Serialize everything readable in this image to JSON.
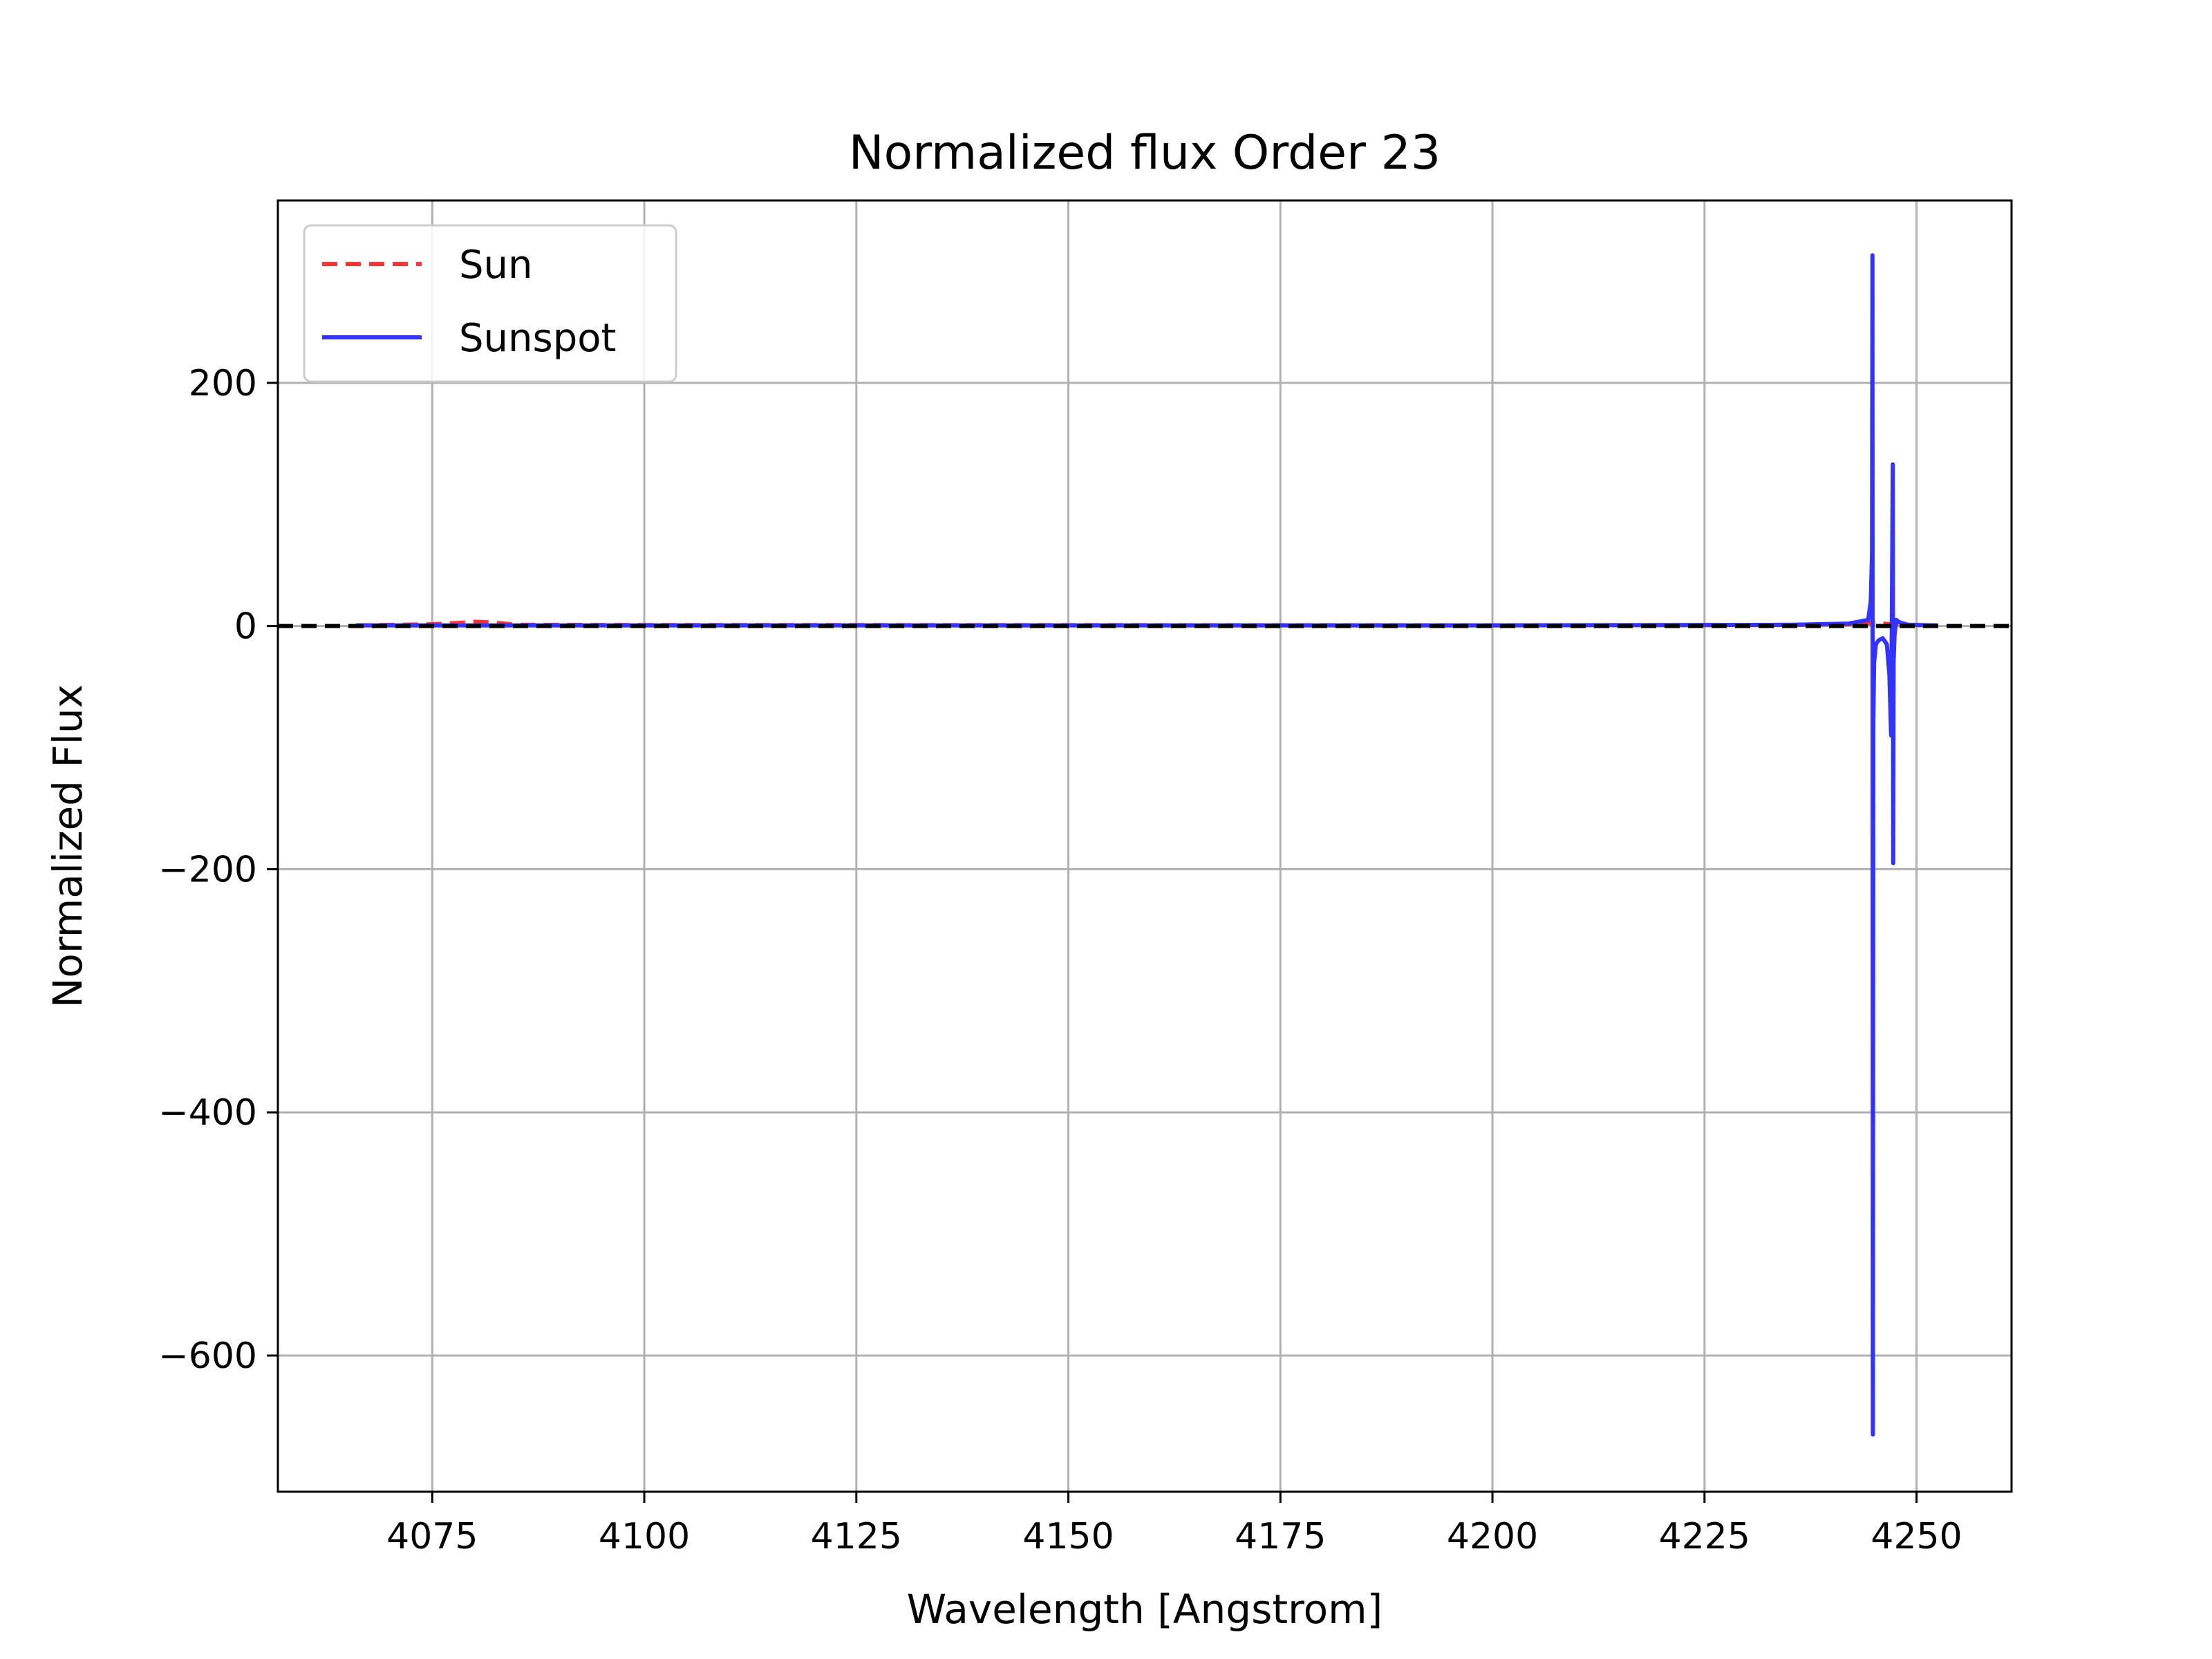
{
  "chart_data": {
    "type": "line",
    "title": "Normalized flux Order 23",
    "xlabel": "Wavelength [Angstrom]",
    "ylabel": "Normalized Flux",
    "xlim": [
      4056.8,
      4261.2
    ],
    "ylim": [
      -712,
      350
    ],
    "xticks": [
      4075,
      4100,
      4125,
      4150,
      4175,
      4200,
      4225,
      4250
    ],
    "xtick_labels": [
      "4075",
      "4100",
      "4125",
      "4150",
      "4175",
      "4200",
      "4225",
      "4250"
    ],
    "yticks": [
      200,
      0,
      -200,
      -400,
      -600
    ],
    "ytick_labels": [
      "200",
      "0",
      "−200",
      "−400",
      "−600"
    ],
    "grid": true,
    "legend_position": "top-left",
    "reference_line": {
      "y": 0,
      "style": "dashed",
      "color": "#000000"
    },
    "series": [
      {
        "name": "Sun",
        "style": "dashed",
        "color": "#ff3333",
        "x": [
          4066,
          4075,
          4078,
          4080,
          4082,
          4085,
          4100,
          4150,
          4200,
          4235,
          4242,
          4245,
          4246,
          4247,
          4248,
          4250,
          4252.5
        ],
        "y": [
          0.5,
          1.5,
          2.5,
          3.5,
          3,
          1,
          0.8,
          0.7,
          0.6,
          0.8,
          1.5,
          2.5,
          2,
          1.5,
          1.2,
          0.8,
          0.5
        ]
      },
      {
        "name": "Sunspot",
        "style": "solid",
        "color": "#3333ff",
        "x": [
          4066,
          4100,
          4150,
          4200,
          4235,
          4242,
          4244.3,
          4244.6,
          4244.75,
          4244.8,
          4244.85,
          4244.9,
          4245.0,
          4245.2,
          4245.5,
          4246.0,
          4246.5,
          4246.8,
          4247.0,
          4247.2,
          4247.25,
          4247.3,
          4247.4,
          4247.6,
          4248.0,
          4249.0,
          4252.5
        ],
        "y": [
          0.5,
          0.5,
          0.5,
          0.5,
          1,
          2,
          5,
          20,
          60,
          305,
          -665,
          -80,
          -30,
          -15,
          -12,
          -10,
          -15,
          -40,
          -90,
          133,
          -195,
          -30,
          -8,
          5,
          3,
          1,
          0.5
        ]
      }
    ]
  }
}
